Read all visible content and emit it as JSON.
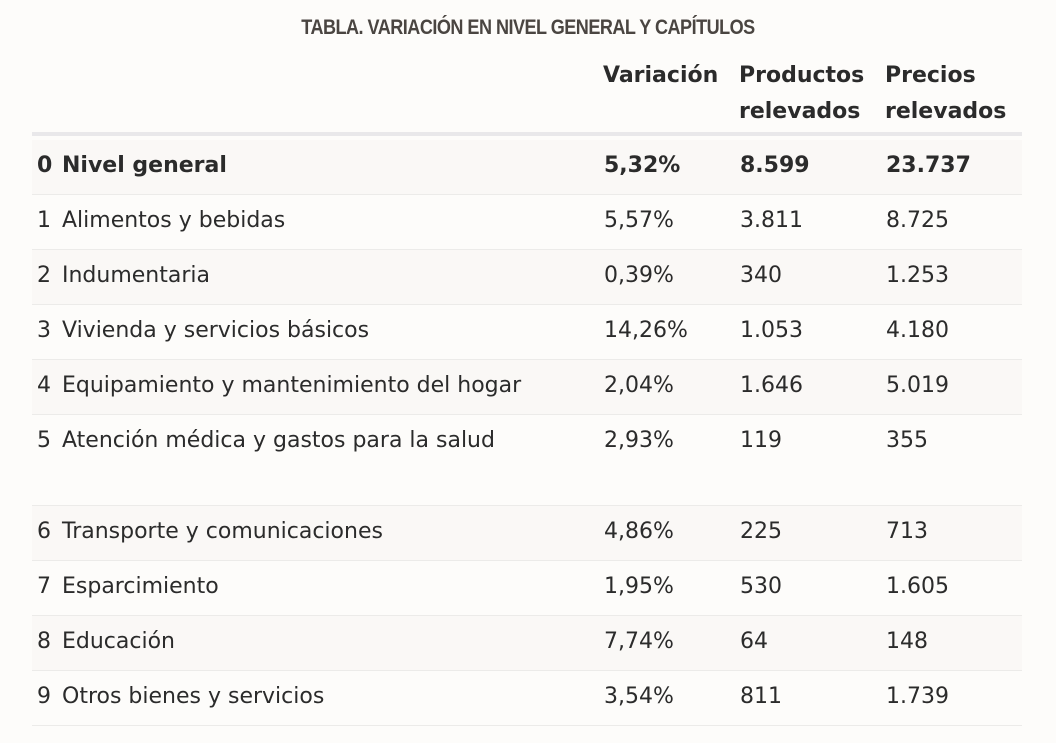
{
  "title": "TABLA. VARIACIÓN EN NIVEL GENERAL Y CAPÍTULOS",
  "columns": {
    "variacion": "Variación",
    "productos": "Productos\nrelevados",
    "precios": "Precios\nrelevados"
  },
  "rows": [
    {
      "num": "0",
      "name": "Nivel general",
      "variacion": "5,32%",
      "productos": "8.599",
      "precios": "23.737"
    },
    {
      "num": "1",
      "name": "Alimentos y bebidas",
      "variacion": "5,57%",
      "productos": "3.811",
      "precios": "8.725"
    },
    {
      "num": "2",
      "name": "Indumentaria",
      "variacion": "0,39%",
      "productos": "340",
      "precios": "1.253"
    },
    {
      "num": "3",
      "name": "Vivienda y servicios básicos",
      "variacion": "14,26%",
      "productos": "1.053",
      "precios": "4.180"
    },
    {
      "num": "4",
      "name": "Equipamiento y mantenimiento del hogar",
      "variacion": "2,04%",
      "productos": "1.646",
      "precios": "5.019"
    },
    {
      "num": "5",
      "name": "Atención médica y gastos para la salud",
      "variacion": "2,93%",
      "productos": "119",
      "precios": "355"
    },
    {
      "num": "6",
      "name": "Transporte y comunicaciones",
      "variacion": "4,86%",
      "productos": "225",
      "precios": "713"
    },
    {
      "num": "7",
      "name": "Esparcimiento",
      "variacion": "1,95%",
      "productos": "530",
      "precios": "1.605"
    },
    {
      "num": "8",
      "name": "Educación",
      "variacion": "7,74%",
      "productos": "64",
      "precios": "148"
    },
    {
      "num": "9",
      "name": "Otros bienes y servicios",
      "variacion": "3,54%",
      "productos": "811",
      "precios": "1.739"
    }
  ]
}
